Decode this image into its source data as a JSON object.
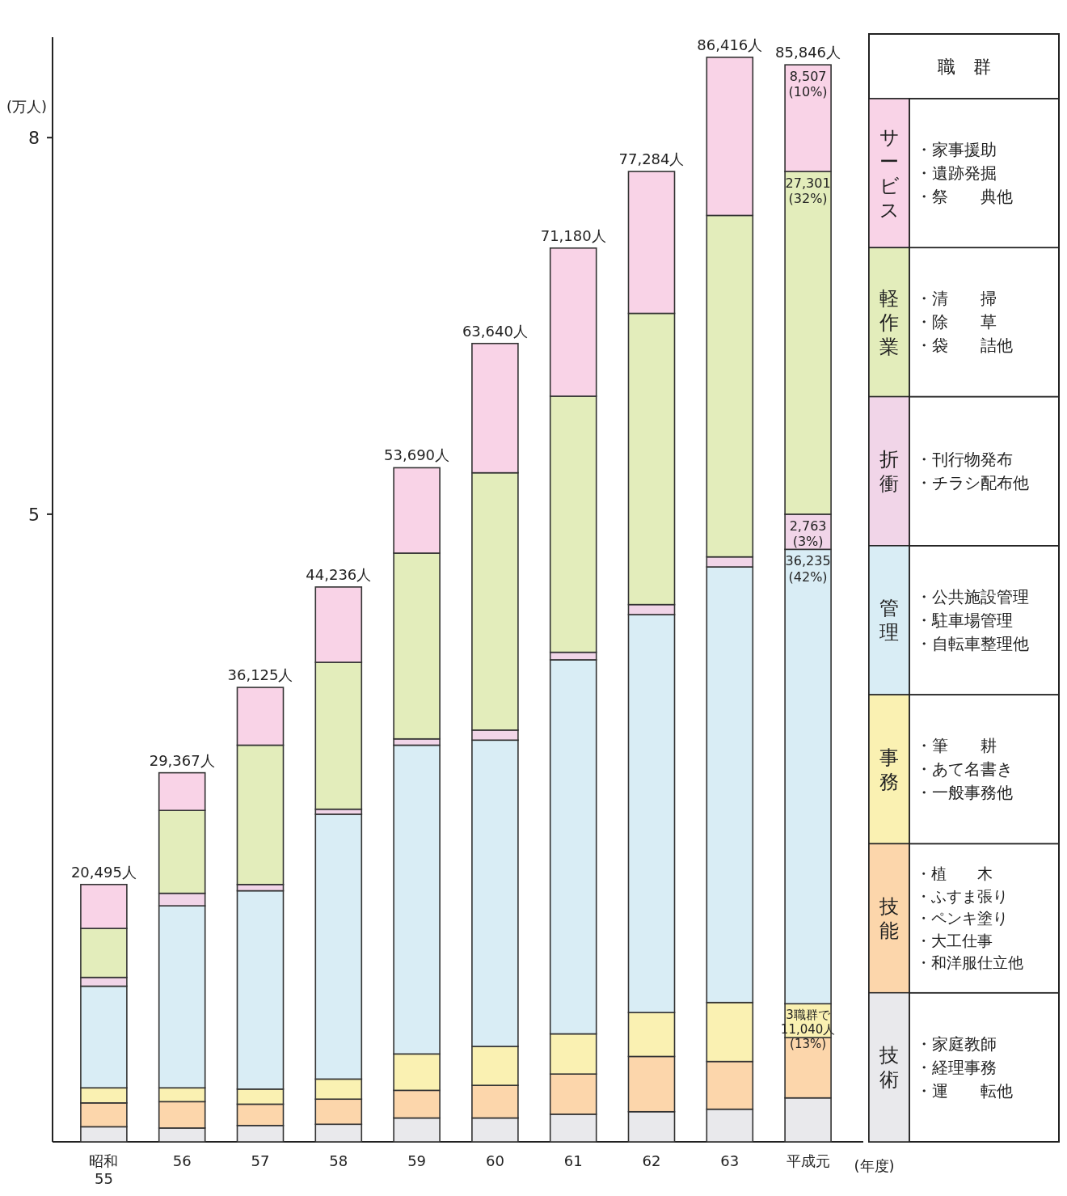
{
  "chart_data": {
    "type": "bar",
    "stacked": true,
    "ylabel": "(万人)",
    "xlabel": "(年度)",
    "legend_title": "職　群",
    "legend": "right",
    "categories": [
      "昭和\n55",
      "56",
      "57",
      "58",
      "59",
      "60",
      "61",
      "62",
      "63",
      "平成元"
    ],
    "ylim": [
      0,
      8.8
    ],
    "yticks": [
      5,
      8
    ],
    "series": [
      {
        "name": "技術",
        "color": "#e9e9ec",
        "values": [
          0.12,
          0.11,
          0.13,
          0.14,
          0.19,
          0.19,
          0.22,
          0.24,
          0.26,
          0.35
        ]
      },
      {
        "name": "技能",
        "color": "#fcd6ab",
        "values": [
          0.19,
          0.21,
          0.17,
          0.2,
          0.22,
          0.26,
          0.32,
          0.44,
          0.38,
          0.48
        ]
      },
      {
        "name": "事務",
        "color": "#faf1b2",
        "values": [
          0.12,
          0.11,
          0.12,
          0.16,
          0.29,
          0.31,
          0.32,
          0.35,
          0.47,
          0.27
        ]
      },
      {
        "name": "管理",
        "color": "#d9edf5",
        "values": [
          0.81,
          1.45,
          1.58,
          2.11,
          2.46,
          2.44,
          2.98,
          3.17,
          3.47,
          3.62
        ]
      },
      {
        "name": "折衝",
        "color": "#f1d5e8",
        "values": [
          0.07,
          0.1,
          0.05,
          0.04,
          0.05,
          0.08,
          0.06,
          0.08,
          0.08,
          0.28
        ]
      },
      {
        "name": "軽作業",
        "color": "#e3edbb",
        "values": [
          0.39,
          0.66,
          1.11,
          1.17,
          1.48,
          2.05,
          2.04,
          2.32,
          2.72,
          2.73
        ]
      },
      {
        "name": "サービス",
        "color": "#f9d3e7",
        "values": [
          0.35,
          0.3,
          0.46,
          0.6,
          0.68,
          1.03,
          1.18,
          1.13,
          1.26,
          0.85
        ]
      }
    ],
    "annotations": [
      "・家庭教師・経理事務・運　　転他",
      "・植　　木・ふすま張り・ペンキ塗り・大工仕事・和洋服仕立他",
      "・筆　　耕・あて名書き・一般事務他",
      "・公共施設管理・駐車場管理・自転車整理他",
      "・刊行物発布・チラシ配布他",
      "・清　　掃・除　　草・袋　　詰他",
      "・家事援助・遺跡発掘・祭　　典他",
      {
        "text": "20,495人",
        "x": "昭和\n55",
        "y": 2.05
      },
      {
        "text": "29,367人",
        "x": "56",
        "y": 2.94
      },
      {
        "text": "36,125人",
        "x": "57",
        "y": 3.62
      },
      {
        "text": "44,236人",
        "x": "58",
        "y": 4.42
      },
      {
        "text": "53,690人",
        "x": "59",
        "y": 5.37
      },
      {
        "text": "63,640人",
        "x": "60",
        "y": 6.36
      },
      {
        "text": "71,180人",
        "x": "61",
        "y": 7.12
      },
      {
        "text": "77,284人",
        "x": "62",
        "y": 7.73
      },
      {
        "text": "86,416人",
        "x": "63",
        "y": 8.64
      },
      {
        "text": "85,846人",
        "x": "平成元",
        "y": 8.58
      },
      {
        "text": "8,507 (10%)",
        "x": "平成元",
        "y": 8.58
      },
      {
        "text": "27,301 (32%)",
        "x": "平成元",
        "y": 7.73
      },
      {
        "text": "2,763 (3%)",
        "x": "平成元",
        "y": 5.0
      },
      {
        "text": "36,235 (42%)",
        "x": "平成元",
        "y": 4.72
      },
      {
        "text": "3職群で 11,040人 (13%)",
        "x": "平成元",
        "y": 1.1
      }
    ]
  }
}
